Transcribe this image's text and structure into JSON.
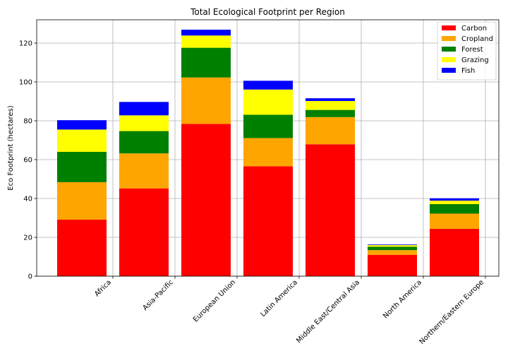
{
  "chart_data": {
    "type": "bar",
    "stacked": true,
    "title": "Total Ecological Footprint per Region",
    "xlabel": "",
    "ylabel": "Eco Footprint (hectares)",
    "ylim": [
      0,
      132
    ],
    "yticks": [
      0,
      20,
      40,
      60,
      80,
      100,
      120
    ],
    "grid": true,
    "legend_position": "top-right",
    "categories": [
      "Africa",
      "Asia-Pacific",
      "European Union",
      "Latin America",
      "Middle East/Central Asia",
      "North America",
      "Northern/Eastern Europe"
    ],
    "series": [
      {
        "name": "Carbon",
        "color": "#ff0000",
        "values": [
          29.1,
          45.2,
          78.4,
          56.6,
          67.9,
          11.0,
          24.4
        ]
      },
      {
        "name": "Cropland",
        "color": "#ffa500",
        "values": [
          19.3,
          18.0,
          23.9,
          14.5,
          14.0,
          2.4,
          7.8
        ]
      },
      {
        "name": "Forest",
        "color": "#008000",
        "values": [
          15.6,
          11.5,
          15.3,
          12.0,
          3.7,
          1.8,
          4.9
        ]
      },
      {
        "name": "Grazing",
        "color": "#ffff00",
        "values": [
          11.5,
          8.1,
          6.3,
          13.0,
          4.6,
          0.8,
          1.8
        ]
      },
      {
        "name": "Fish",
        "color": "#0000ff",
        "values": [
          4.8,
          6.9,
          3.0,
          4.5,
          1.4,
          0.3,
          1.2
        ]
      }
    ]
  }
}
